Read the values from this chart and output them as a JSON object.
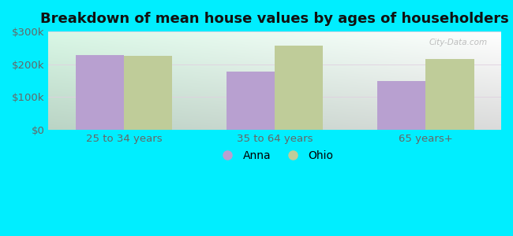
{
  "title": "Breakdown of mean house values by ages of householders",
  "categories": [
    "25 to 34 years",
    "35 to 64 years",
    "65 years+"
  ],
  "anna_values": [
    228000,
    178000,
    148000
  ],
  "ohio_values": [
    225000,
    258000,
    215000
  ],
  "ylim": [
    0,
    300000
  ],
  "yticks": [
    0,
    100000,
    200000,
    300000
  ],
  "ytick_labels": [
    "$0",
    "$100k",
    "$200k",
    "$300k"
  ],
  "anna_color": "#b8a0d0",
  "ohio_color": "#bfcc99",
  "bar_width": 0.32,
  "background_outer": "#00eeff",
  "title_fontsize": 13,
  "tick_fontsize": 9.5,
  "legend_fontsize": 10,
  "grid_color": "#c8e8c0",
  "watermark": "City-Data.com"
}
